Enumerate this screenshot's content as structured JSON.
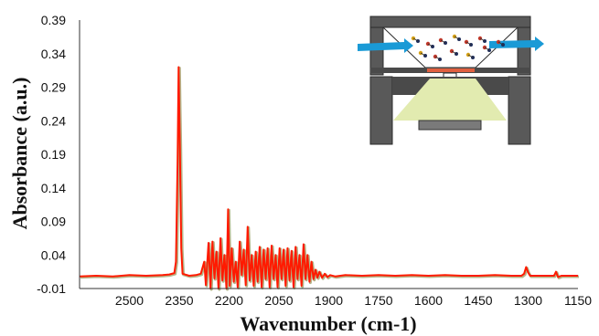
{
  "chart_data": {
    "type": "line",
    "xlabel": "Wavenumber (cm-1)",
    "ylabel": "Absorbance (a.u.)",
    "xlim": [
      2650,
      1150
    ],
    "ylim": [
      -0.01,
      0.39
    ],
    "x_reversed": true,
    "grid": false,
    "x_ticks": [
      "2500",
      "2350",
      "2200",
      "2050",
      "1900",
      "1750",
      "1600",
      "1450",
      "1300",
      "1150"
    ],
    "y_ticks": [
      "0.39",
      "0.34",
      "0.29",
      "0.24",
      "0.19",
      "0.14",
      "0.09",
      "0.04",
      "-0.01"
    ],
    "series": [
      {
        "name": "",
        "color": "#ff1a00",
        "points": [
          [
            2650,
            0.008
          ],
          [
            2600,
            0.009
          ],
          [
            2550,
            0.008
          ],
          [
            2500,
            0.01
          ],
          [
            2450,
            0.009
          ],
          [
            2400,
            0.01
          ],
          [
            2380,
            0.011
          ],
          [
            2365,
            0.013
          ],
          [
            2360,
            0.03
          ],
          [
            2355,
            0.18
          ],
          [
            2352,
            0.32
          ],
          [
            2348,
            0.2
          ],
          [
            2344,
            0.05
          ],
          [
            2340,
            0.012
          ],
          [
            2320,
            0.009
          ],
          [
            2300,
            0.01
          ],
          [
            2285,
            0.012
          ],
          [
            2275,
            0.03
          ],
          [
            2270,
            -0.005
          ],
          [
            2262,
            0.058
          ],
          [
            2256,
            -0.01
          ],
          [
            2250,
            0.06
          ],
          [
            2244,
            0.005
          ],
          [
            2238,
            0.045
          ],
          [
            2232,
            -0.01
          ],
          [
            2226,
            0.065
          ],
          [
            2220,
            0.002
          ],
          [
            2214,
            0.04
          ],
          [
            2208,
            -0.01
          ],
          [
            2203,
            0.108
          ],
          [
            2198,
            -0.006
          ],
          [
            2192,
            0.05
          ],
          [
            2186,
            0.0
          ],
          [
            2180,
            0.03
          ],
          [
            2174,
            -0.008
          ],
          [
            2168,
            0.06
          ],
          [
            2162,
            0.01
          ],
          [
            2156,
            0.048
          ],
          [
            2150,
            -0.005
          ],
          [
            2144,
            0.082
          ],
          [
            2138,
            0.002
          ],
          [
            2132,
            0.04
          ],
          [
            2126,
            -0.006
          ],
          [
            2120,
            0.045
          ],
          [
            2114,
            0.0
          ],
          [
            2108,
            0.052
          ],
          [
            2102,
            -0.008
          ],
          [
            2096,
            0.048
          ],
          [
            2090,
            0.004
          ],
          [
            2084,
            0.05
          ],
          [
            2078,
            -0.008
          ],
          [
            2072,
            0.054
          ],
          [
            2066,
            0.004
          ],
          [
            2060,
            0.04
          ],
          [
            2054,
            -0.008
          ],
          [
            2048,
            0.05
          ],
          [
            2042,
            0.004
          ],
          [
            2036,
            0.048
          ],
          [
            2030,
            -0.006
          ],
          [
            2024,
            0.05
          ],
          [
            2018,
            0.002
          ],
          [
            2012,
            0.046
          ],
          [
            2006,
            -0.008
          ],
          [
            2000,
            0.052
          ],
          [
            1994,
            0.004
          ],
          [
            1988,
            0.04
          ],
          [
            1982,
            -0.006
          ],
          [
            1976,
            0.056
          ],
          [
            1970,
            0.004
          ],
          [
            1964,
            0.04
          ],
          [
            1958,
            0.0
          ],
          [
            1952,
            0.03
          ],
          [
            1946,
            0.004
          ],
          [
            1940,
            0.018
          ],
          [
            1934,
            0.006
          ],
          [
            1928,
            0.015
          ],
          [
            1920,
            0.006
          ],
          [
            1912,
            0.012
          ],
          [
            1904,
            0.007
          ],
          [
            1896,
            0.01
          ],
          [
            1880,
            0.008
          ],
          [
            1850,
            0.01
          ],
          [
            1800,
            0.009
          ],
          [
            1750,
            0.01
          ],
          [
            1700,
            0.009
          ],
          [
            1650,
            0.01
          ],
          [
            1600,
            0.009
          ],
          [
            1550,
            0.01
          ],
          [
            1500,
            0.009
          ],
          [
            1450,
            0.009
          ],
          [
            1400,
            0.01
          ],
          [
            1350,
            0.009
          ],
          [
            1320,
            0.009
          ],
          [
            1312,
            0.012
          ],
          [
            1306,
            0.022
          ],
          [
            1300,
            0.014
          ],
          [
            1294,
            0.009
          ],
          [
            1250,
            0.009
          ],
          [
            1222,
            0.009
          ],
          [
            1216,
            0.015
          ],
          [
            1210,
            0.007
          ],
          [
            1200,
            0.009
          ],
          [
            1175,
            0.009
          ],
          [
            1150,
            0.009
          ]
        ]
      }
    ]
  },
  "inset": {
    "description_icon": "reaction-cell-schematic-icon",
    "arrow_color": "#1a9ad6",
    "window_color": "#e2ebb0",
    "body_color": "#595959"
  }
}
